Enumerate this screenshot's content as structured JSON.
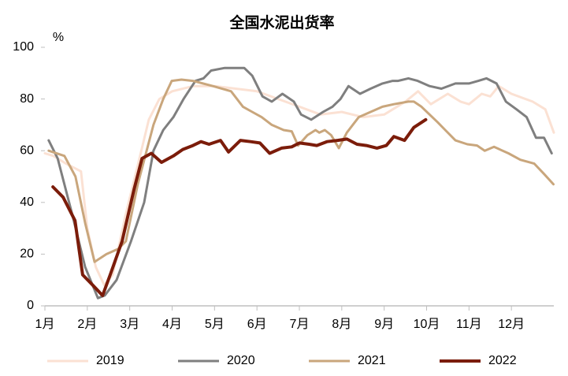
{
  "chart_data": {
    "type": "line",
    "title": "全国水泥出货率",
    "y_unit_label": "%",
    "xlim": [
      1,
      13
    ],
    "ylim": [
      0,
      100
    ],
    "yticks": [
      0,
      20,
      40,
      60,
      80,
      100
    ],
    "xticks": [
      {
        "value": 1,
        "label": "1月"
      },
      {
        "value": 2,
        "label": "2月"
      },
      {
        "value": 3,
        "label": "3月"
      },
      {
        "value": 4,
        "label": "4月"
      },
      {
        "value": 5,
        "label": "5月"
      },
      {
        "value": 6,
        "label": "6月"
      },
      {
        "value": 7,
        "label": "7月"
      },
      {
        "value": 8,
        "label": "8月"
      },
      {
        "value": 9,
        "label": "9月"
      },
      {
        "value": 10,
        "label": "10月"
      },
      {
        "value": 11,
        "label": "11月"
      },
      {
        "value": 12,
        "label": "12月"
      }
    ],
    "legend": "bottom",
    "series": [
      {
        "name": "2019",
        "color": "#fbe1d3",
        "line_width": 3,
        "x": [
          1.0,
          1.2,
          1.5,
          1.85,
          2.0,
          2.2,
          2.4,
          2.6,
          2.9,
          3.2,
          3.45,
          3.7,
          4.0,
          4.5,
          5.0,
          5.5,
          6.0,
          6.5,
          7.0,
          7.5,
          8.0,
          8.5,
          9.0,
          9.5,
          9.8,
          10.1,
          10.5,
          10.8,
          11.0,
          11.3,
          11.5,
          11.7,
          12.0,
          12.5,
          12.8,
          13.0
        ],
        "values": [
          59,
          58,
          55,
          52,
          30,
          15,
          8,
          12,
          35,
          55,
          72,
          80,
          83,
          85,
          85,
          84,
          83,
          80,
          77,
          74,
          75,
          73,
          74,
          79,
          83,
          78,
          82,
          79,
          78,
          82,
          81,
          85,
          82,
          79,
          76,
          67
        ]
      },
      {
        "name": "2020",
        "color": "#7f7f7f",
        "line_width": 3,
        "x": [
          1.09,
          1.3,
          1.65,
          1.95,
          2.25,
          2.41,
          2.69,
          3.03,
          3.34,
          3.56,
          3.79,
          4.03,
          4.27,
          4.55,
          4.74,
          4.92,
          5.24,
          5.7,
          5.89,
          6.13,
          6.35,
          6.6,
          6.87,
          7.04,
          7.28,
          7.56,
          7.78,
          7.97,
          8.16,
          8.43,
          8.68,
          8.96,
          9.2,
          9.33,
          9.57,
          9.79,
          10.07,
          10.35,
          10.68,
          11.0,
          11.22,
          11.41,
          11.65,
          11.87,
          12.12,
          12.36,
          12.58,
          12.77,
          12.95
        ],
        "values": [
          64,
          57,
          35,
          15,
          3,
          4,
          10,
          25,
          40,
          60,
          68,
          73,
          80,
          87,
          88,
          91,
          92,
          92,
          89,
          81,
          79,
          82,
          79,
          74,
          72,
          75,
          77,
          80,
          85,
          82,
          84,
          86,
          87,
          87,
          88,
          87,
          85,
          84,
          86,
          86,
          87,
          88,
          86,
          79,
          76,
          73,
          65,
          65,
          59
        ]
      },
      {
        "name": "2021",
        "color": "#c9a67c",
        "line_width": 3,
        "x": [
          1.09,
          1.46,
          1.72,
          1.95,
          2.17,
          2.45,
          2.73,
          2.91,
          3.19,
          3.56,
          3.79,
          3.99,
          4.22,
          4.49,
          4.96,
          5.39,
          5.67,
          5.89,
          6.11,
          6.35,
          6.63,
          6.82,
          6.97,
          7.19,
          7.38,
          7.47,
          7.6,
          7.75,
          7.93,
          8.12,
          8.4,
          8.68,
          8.96,
          9.23,
          9.57,
          9.7,
          9.88,
          10.07,
          10.26,
          10.44,
          10.68,
          10.96,
          11.19,
          11.37,
          11.59,
          11.93,
          12.21,
          12.54,
          12.77,
          12.99
        ],
        "values": [
          60,
          58,
          50,
          32,
          17,
          20,
          22,
          25,
          47,
          70,
          80,
          87,
          87.5,
          87,
          85,
          83,
          77,
          75,
          73,
          70,
          68,
          67.5,
          62,
          66,
          68,
          67,
          68,
          66,
          61,
          67,
          73,
          75,
          77,
          78,
          79,
          79,
          77,
          74,
          71,
          68,
          64,
          62.5,
          62,
          60,
          61.5,
          59,
          56.5,
          55,
          51,
          47
        ]
      },
      {
        "name": "2022",
        "color": "#7b1c0a",
        "line_width": 4,
        "x": [
          1.19,
          1.43,
          1.71,
          1.89,
          2.13,
          2.36,
          2.54,
          2.82,
          3.1,
          3.29,
          3.51,
          3.75,
          4.03,
          4.25,
          4.49,
          4.68,
          4.87,
          5.14,
          5.33,
          5.61,
          5.85,
          6.07,
          6.3,
          6.58,
          6.82,
          7.0,
          7.23,
          7.41,
          7.65,
          7.9,
          8.12,
          8.36,
          8.58,
          8.83,
          9.05,
          9.23,
          9.48,
          9.7,
          9.98
        ],
        "values": [
          46,
          42,
          33,
          12,
          8,
          4,
          12,
          25,
          45,
          57,
          59,
          55.5,
          58,
          60.5,
          62,
          63.5,
          62.5,
          64,
          59.5,
          64,
          63.5,
          63,
          59,
          61,
          61.5,
          63,
          62.5,
          62,
          63.5,
          64,
          64.5,
          62.5,
          62,
          61,
          62,
          65.5,
          64,
          69,
          72
        ]
      }
    ]
  }
}
